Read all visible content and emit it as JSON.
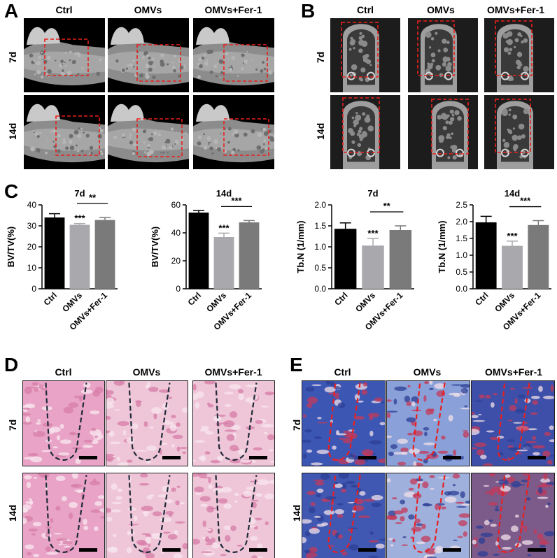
{
  "panel_labels": [
    "A",
    "B",
    "C",
    "D",
    "E"
  ],
  "columns": [
    "Ctrl",
    "OMVs",
    "OMVs+Fer-1"
  ],
  "rows": [
    "7d",
    "14d"
  ],
  "colors": {
    "ctrl": "#000000",
    "omvs": "#a9a9ad",
    "fer1": "#7a7a7a",
    "roi_dash": "#e8201c",
    "he_outline": "#1f2a3a",
    "masson_dash": "#e82020"
  },
  "chart_data": [
    {
      "type": "bar",
      "title": "7d",
      "ylabel": "BV/TV(%)",
      "categories": [
        "Ctrl",
        "OMVs",
        "OMVs+Fer-1"
      ],
      "values": [
        34,
        30.5,
        32.8
      ],
      "errors": [
        1.8,
        0.6,
        1.2
      ],
      "ylim": [
        0,
        40
      ],
      "yticks": [
        "0",
        "10",
        "20",
        "30",
        "40"
      ],
      "significance": [
        {
          "bar": 1,
          "text": "***"
        },
        {
          "bracket": [
            1,
            2
          ],
          "text": "**"
        }
      ]
    },
    {
      "type": "bar",
      "title": "14d",
      "ylabel": "BV/TV(%)",
      "categories": [
        "Ctrl",
        "OMVs",
        "OMVs+Fer-1"
      ],
      "values": [
        54.5,
        37,
        47.5
      ],
      "errors": [
        1.5,
        2.8,
        1.3
      ],
      "ylim": [
        0,
        60
      ],
      "yticks": [
        "0",
        "20",
        "40",
        "60"
      ],
      "significance": [
        {
          "bar": 1,
          "text": "***"
        },
        {
          "bracket": [
            1,
            2
          ],
          "text": "***"
        }
      ]
    },
    {
      "type": "bar",
      "title": "7d",
      "ylabel": "Tb.N (1/mm)",
      "categories": [
        "Ctrl",
        "OMVs",
        "OMVs+Fer-1"
      ],
      "values": [
        1.43,
        1.03,
        1.4
      ],
      "errors": [
        0.14,
        0.17,
        0.1
      ],
      "ylim": [
        0,
        2.0
      ],
      "yticks": [
        "0.0",
        "0.5",
        "1.0",
        "1.5",
        "2.0"
      ],
      "significance": [
        {
          "bar": 1,
          "text": "***"
        },
        {
          "bracket": [
            1,
            2
          ],
          "text": "**"
        }
      ]
    },
    {
      "type": "bar",
      "title": "14d",
      "ylabel": "Tb.N (1/mm)",
      "categories": [
        "Ctrl",
        "OMVs",
        "OMVs+Fer-1"
      ],
      "values": [
        1.98,
        1.28,
        1.9
      ],
      "errors": [
        0.18,
        0.14,
        0.13
      ],
      "ylim": [
        0,
        2.5
      ],
      "yticks": [
        "0.0",
        "0.5",
        "1.0",
        "1.5",
        "2.0",
        "2.5"
      ],
      "significance": [
        {
          "bar": 1,
          "text": "***"
        },
        {
          "bracket": [
            1,
            2
          ],
          "text": "***"
        }
      ]
    }
  ]
}
